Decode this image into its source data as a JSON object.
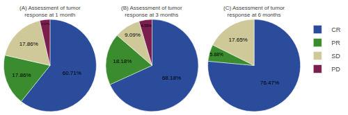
{
  "chart_data": [
    {
      "type": "pie",
      "title": "(A) Assessment of tumor response at 1 month",
      "categories": [
        "CR",
        "PR",
        "SD",
        "PD"
      ],
      "values": [
        60.71,
        17.86,
        17.86,
        3.57
      ],
      "value_labels": [
        "60.71%",
        "17.86%",
        "17.86%",
        "3.57%"
      ],
      "colors": [
        "#2b4c9b",
        "#3a8c2f",
        "#cfc99a",
        "#7b1f4e"
      ],
      "legend": "upper right"
    },
    {
      "type": "pie",
      "title": "(B) Assessment of tumor response at 3 months",
      "categories": [
        "CR",
        "PR",
        "SD",
        "PD"
      ],
      "values": [
        68.18,
        18.18,
        9.09,
        4.55
      ],
      "value_labels": [
        "68.18%",
        "18.18%",
        "9.09%",
        "4.55%"
      ],
      "colors": [
        "#2b4c9b",
        "#3a8c2f",
        "#cfc99a",
        "#7b1f4e"
      ],
      "legend": "upper right"
    },
    {
      "type": "pie",
      "title": "(C) Assessment of tumor response at 6 months",
      "categories": [
        "CR",
        "PR",
        "SD"
      ],
      "values": [
        76.47,
        5.88,
        17.65
      ],
      "value_labels": [
        "76.47%",
        "5.88%",
        "17.65%"
      ],
      "colors": [
        "#2b4c9b",
        "#3a8c2f",
        "#cfc99a"
      ],
      "legend": "upper right"
    }
  ]
}
